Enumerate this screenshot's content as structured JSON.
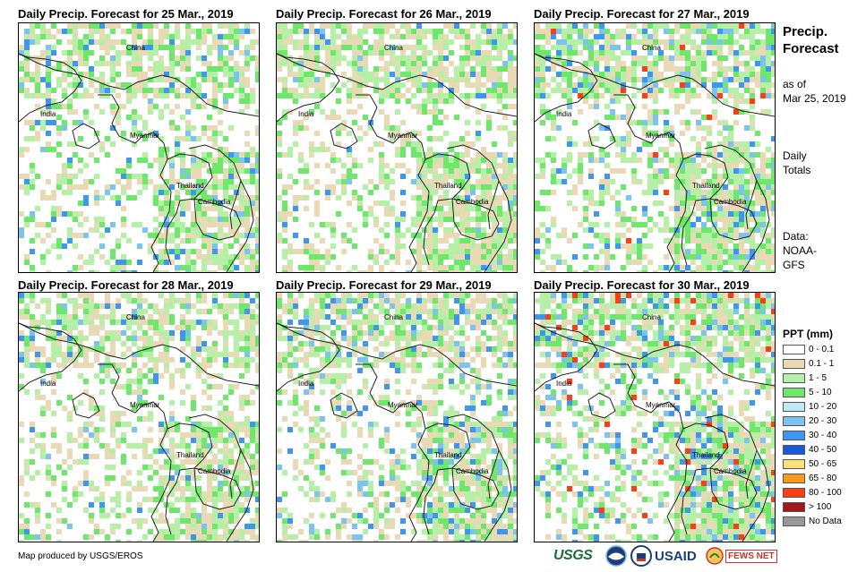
{
  "panels": [
    {
      "title": "Daily Precip. Forecast for 25 Mar., 2019"
    },
    {
      "title": "Daily Precip. Forecast for 26 Mar., 2019"
    },
    {
      "title": "Daily Precip. Forecast for 27 Mar., 2019"
    },
    {
      "title": "Daily Precip. Forecast for 28 Mar., 2019"
    },
    {
      "title": "Daily Precip. Forecast for 29 Mar., 2019"
    },
    {
      "title": "Daily Precip. Forecast for 30 Mar., 2019"
    }
  ],
  "map_labels": {
    "china": "China",
    "india": "India",
    "myanmar": "Myanmar",
    "thailand": "Thailand",
    "cambodia": "Cambodia"
  },
  "side": {
    "title_line1": "Precip.",
    "title_line2": "Forecast",
    "asof_line1": "as of",
    "asof_line2": "Mar 25, 2019",
    "totals_line1": "Daily",
    "totals_line2": "Totals",
    "data_line1": "Data:",
    "data_line2": "NOAA-",
    "data_line3": "GFS"
  },
  "legend": {
    "title": "PPT (mm)",
    "items": [
      {
        "label": "0 - 0.1",
        "color": "#ffffff"
      },
      {
        "label": "0.1 - 1",
        "color": "#ead9b5"
      },
      {
        "label": "1 - 5",
        "color": "#b6f0a6"
      },
      {
        "label": "5 - 10",
        "color": "#6ee86a"
      },
      {
        "label": "10 - 20",
        "color": "#bde9f7"
      },
      {
        "label": "20 - 30",
        "color": "#7cc3f0"
      },
      {
        "label": "30 - 40",
        "color": "#3d96f0"
      },
      {
        "label": "40 - 50",
        "color": "#1859d9"
      },
      {
        "label": "50 - 65",
        "color": "#f8e07a"
      },
      {
        "label": "65 - 80",
        "color": "#f79a1d"
      },
      {
        "label": "80 - 100",
        "color": "#ff3c14"
      },
      {
        "label": "> 100",
        "color": "#a01818"
      },
      {
        "label": "No Data",
        "color": "#999999"
      }
    ]
  },
  "footer": {
    "credit": "Map produced by USGS/EROS",
    "usgs_logo": "USGS",
    "usaid_logo": "USAID",
    "fews_logo": "FEWS NET"
  }
}
